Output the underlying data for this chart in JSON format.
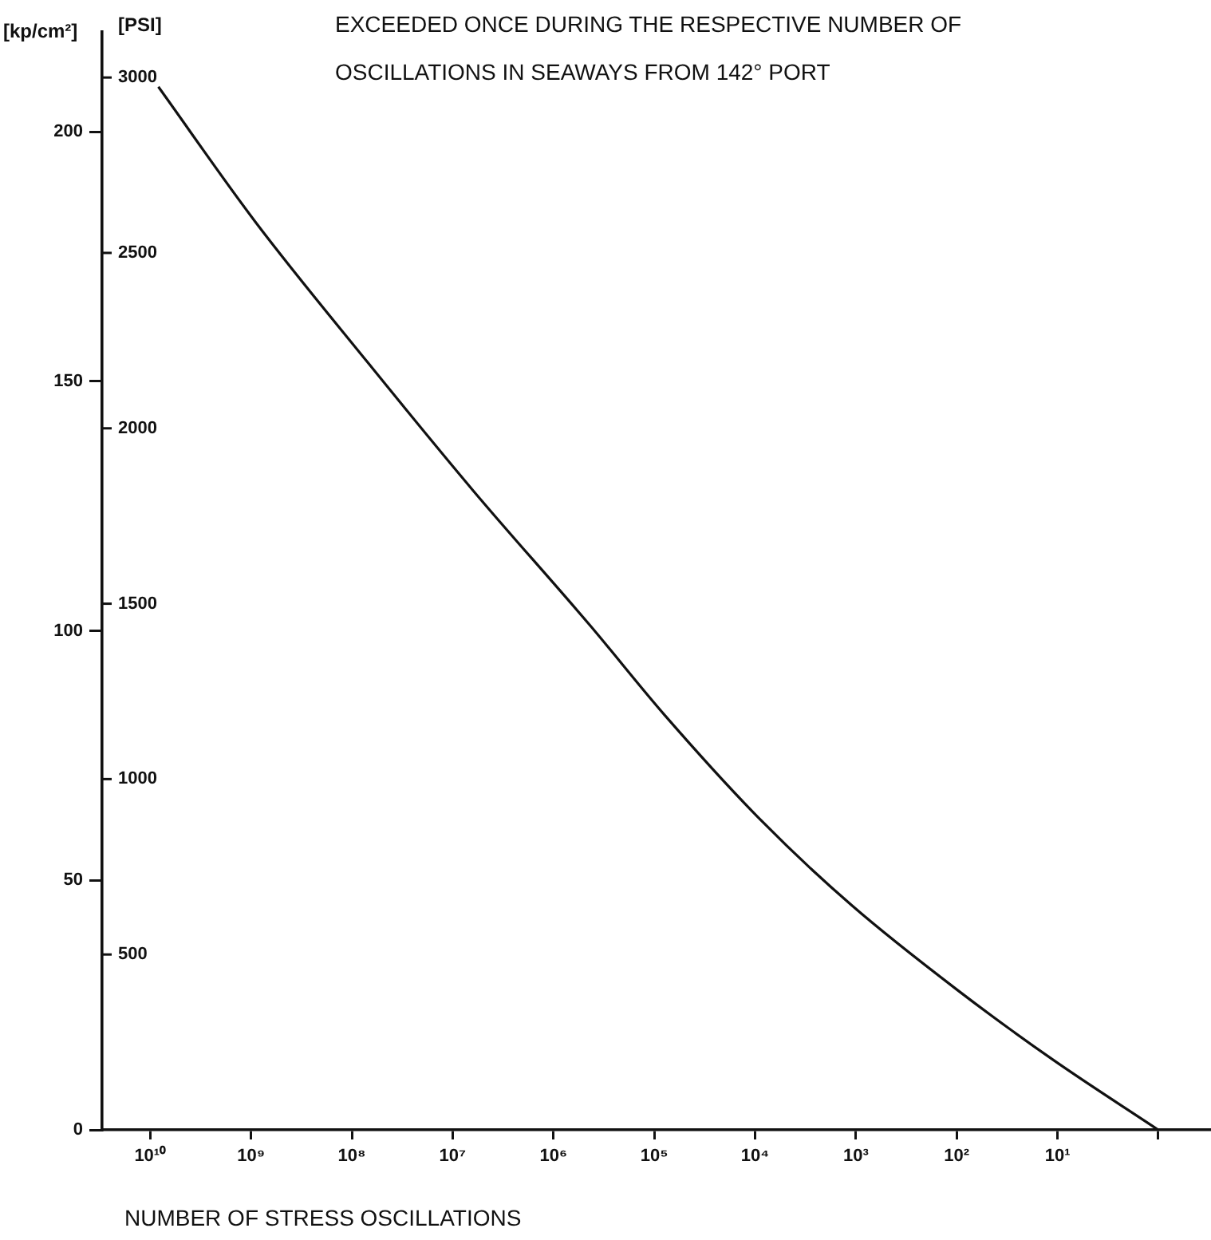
{
  "chart_data": {
    "type": "line",
    "title": "EXCEEDED ONCE DURING THE RESPECTIVE NUMBER OF OSCILLATIONS IN SEAWAYS FROM 142° PORT",
    "xlabel": "NUMBER OF STRESS OSCILLATIONS",
    "ylabel": "[kp/cm²]",
    "y2label": "[PSI]",
    "x": [
      8300000000.0,
      910000000.0,
      71000000.0,
      6200000.0,
      430000.0,
      78000.0,
      8700.0,
      1100.0,
      98,
      11,
      1
    ],
    "series": [
      {
        "color": "#111111",
        "values": [
          209,
          182,
          154,
          128,
          101,
          83,
          62,
          45,
          28,
          14,
          0
        ]
      }
    ],
    "log": "x",
    "xlim": [
      30000000000.0,
      0.3
    ],
    "xticks": [
      {
        "value": 10000000000.0,
        "label": "10¹⁰"
      },
      {
        "value": 1000000000.0,
        "label": "10⁹"
      },
      {
        "value": 100000000.0,
        "label": "10⁸"
      },
      {
        "value": 10000000.0,
        "label": "10⁷"
      },
      {
        "value": 1000000.0,
        "label": "10⁶"
      },
      {
        "value": 100000.0,
        "label": "10⁵"
      },
      {
        "value": 10000.0,
        "label": "10⁴"
      },
      {
        "value": 1000.0,
        "label": "10³"
      },
      {
        "value": 100,
        "label": "10²"
      },
      {
        "value": 10,
        "label": "10¹"
      },
      {
        "value": 1,
        "label": null
      }
    ],
    "ylim": [
      0,
      220
    ],
    "yticks": [
      0,
      50,
      100,
      150,
      200
    ],
    "y2lim": [
      0,
      3130
    ],
    "y2ticks": [
      500,
      1000,
      1500,
      2000,
      2500,
      3000
    ],
    "marker": "none",
    "line_style": "solid"
  }
}
